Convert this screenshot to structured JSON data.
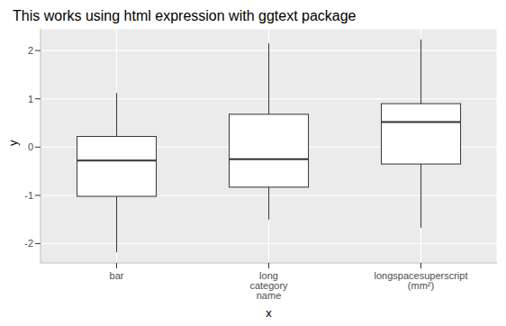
{
  "chart_data": {
    "type": "boxplot",
    "title": "This works using html expression with ggtext package",
    "x_label": "x",
    "y_label": "y",
    "categories": [
      "bar",
      "long\ncategory\nname",
      "longspacesuperscript\n(mm²)"
    ],
    "low": [
      -2.18,
      -1.5,
      -1.67
    ],
    "q1": [
      -1.02,
      -0.83,
      -0.35
    ],
    "median": [
      -0.28,
      -0.25,
      0.52
    ],
    "q3": [
      0.22,
      0.68,
      0.9
    ],
    "high": [
      1.12,
      2.15,
      2.23
    ],
    "ylim": [
      -2.4,
      2.45
    ],
    "yticks": [
      -2,
      -1,
      0,
      1,
      2
    ],
    "grid": true,
    "color": "#ffffff"
  }
}
